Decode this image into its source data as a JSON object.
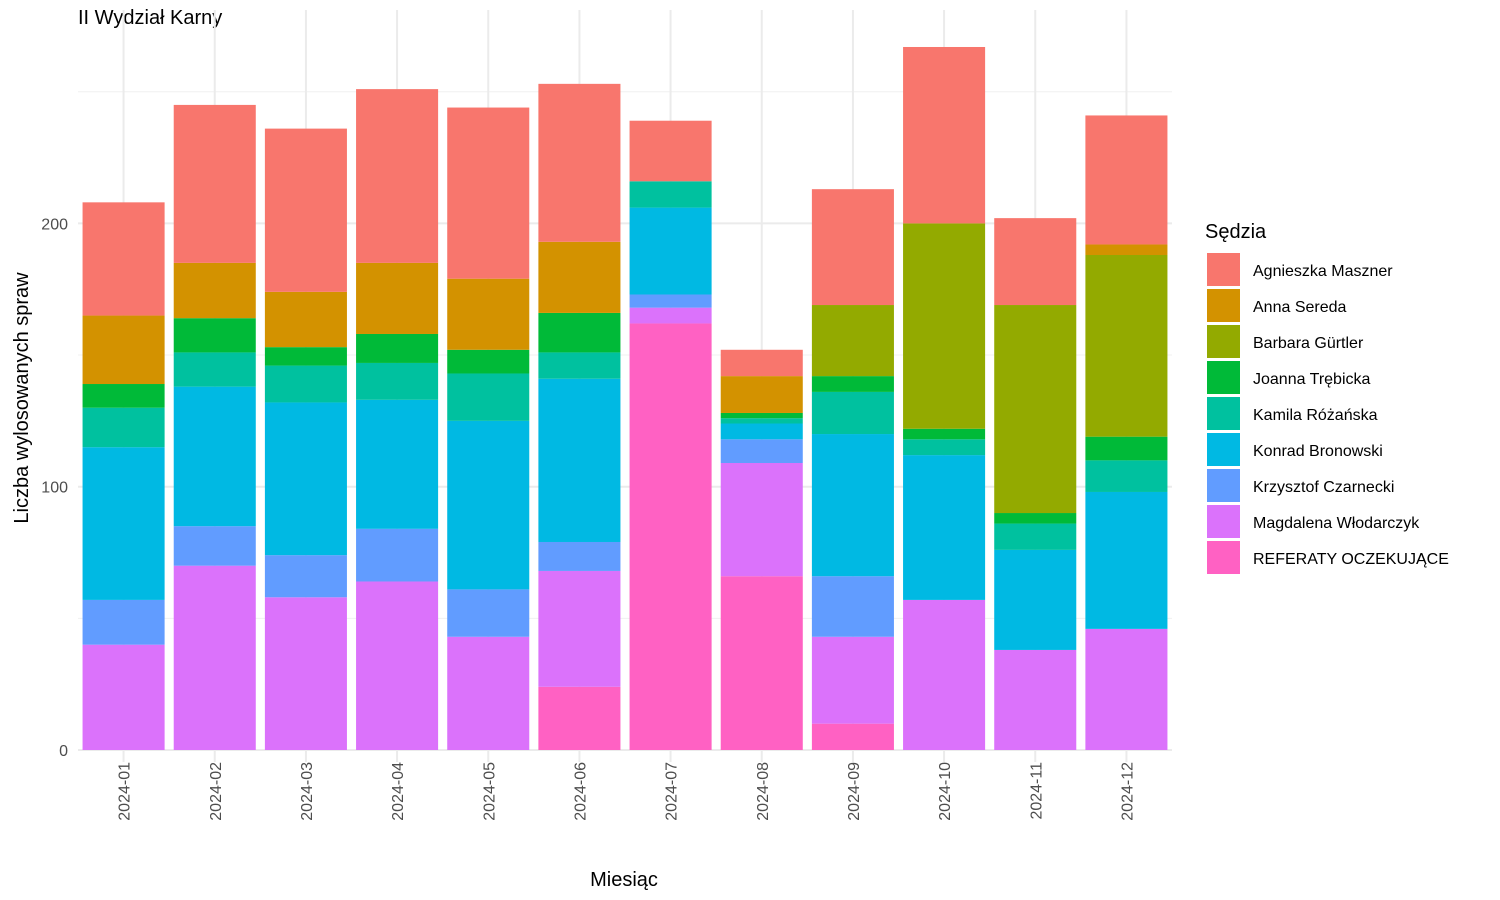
{
  "chart_data": {
    "type": "bar",
    "stacked": true,
    "title": "II Wydział Karny",
    "xlabel": "Miesiąc",
    "ylabel": "Liczba wylosowanych spraw",
    "ylim": [
      0,
      270
    ],
    "yticks": [
      0,
      100,
      200
    ],
    "grid": true,
    "legend_title": "Sędzia",
    "legend_position": "right",
    "categories": [
      "2024-01",
      "2024-02",
      "2024-03",
      "2024-04",
      "2024-05",
      "2024-06",
      "2024-07",
      "2024-08",
      "2024-09",
      "2024-10",
      "2024-11",
      "2024-12"
    ],
    "series": [
      {
        "name": "REFERATY OCZEKUJĄCE",
        "color": "#FF61C3",
        "values": [
          0,
          0,
          0,
          0,
          0,
          24,
          162,
          66,
          10,
          0,
          0,
          0
        ]
      },
      {
        "name": "Magdalena Włodarczyk",
        "color": "#DB72FB",
        "values": [
          40,
          70,
          58,
          64,
          43,
          44,
          6,
          43,
          33,
          57,
          38,
          46
        ]
      },
      {
        "name": "Krzysztof Czarnecki",
        "color": "#619CFF",
        "values": [
          17,
          15,
          16,
          20,
          18,
          11,
          5,
          9,
          23,
          0,
          0,
          0
        ]
      },
      {
        "name": "Konrad Bronowski",
        "color": "#00B9E3",
        "values": [
          58,
          53,
          58,
          49,
          64,
          62,
          33,
          6,
          54,
          55,
          38,
          52
        ]
      },
      {
        "name": "Kamila Różańska",
        "color": "#00C19F",
        "values": [
          15,
          13,
          14,
          14,
          18,
          10,
          10,
          2,
          16,
          6,
          10,
          12
        ]
      },
      {
        "name": "Joanna Trębicka",
        "color": "#00BA38",
        "values": [
          9,
          13,
          7,
          11,
          9,
          15,
          0,
          2,
          6,
          4,
          4,
          9
        ]
      },
      {
        "name": "Barbara Gürtler",
        "color": "#93AA00",
        "values": [
          0,
          0,
          0,
          0,
          0,
          0,
          0,
          0,
          27,
          78,
          79,
          69
        ]
      },
      {
        "name": "Anna Sereda",
        "color": "#D39200",
        "values": [
          26,
          21,
          21,
          27,
          27,
          27,
          0,
          14,
          0,
          0,
          0,
          4
        ]
      },
      {
        "name": "Agnieszka Maszner",
        "color": "#F8766D",
        "values": [
          43,
          60,
          62,
          66,
          65,
          60,
          23,
          10,
          44,
          67,
          33,
          49
        ]
      }
    ],
    "legend_order": [
      "Agnieszka Maszner",
      "Anna Sereda",
      "Barbara Gürtler",
      "Joanna Trębicka",
      "Kamila Różańska",
      "Konrad Bronowski",
      "Krzysztof Czarnecki",
      "Magdalena Włodarczyk",
      "REFERATY OCZEKUJĄCE"
    ]
  }
}
